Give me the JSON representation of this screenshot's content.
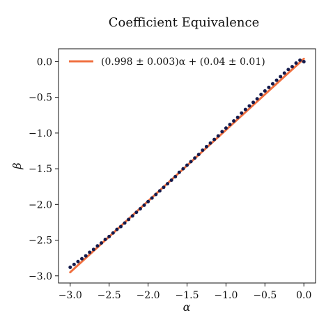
{
  "chart_data": {
    "type": "scatter",
    "title": "Coefficient Equivalence",
    "xlabel": "α",
    "ylabel": "β",
    "xlim": [
      -3.15,
      0.15
    ],
    "ylim": [
      -3.1,
      0.18
    ],
    "x_ticks": [
      -3.0,
      -2.5,
      -2.0,
      -1.5,
      -1.0,
      -0.5,
      0.0
    ],
    "x_tick_labels": [
      "−3.0",
      "−2.5",
      "−2.0",
      "−1.5",
      "−1.0",
      "−0.5",
      "0.0"
    ],
    "y_ticks": [
      0.0,
      -0.5,
      -1.0,
      -1.5,
      -2.0,
      -2.5,
      -3.0
    ],
    "y_tick_labels": [
      "0.0",
      "−0.5",
      "−1.0",
      "−1.5",
      "−2.0",
      "−2.5",
      "−3.0"
    ],
    "grid": false,
    "legend_position": "top-left",
    "legend_label": "(0.998 ± 0.003)α + (0.04 ± 0.01)",
    "points": {
      "x": [
        -3.0,
        -2.95,
        -2.9,
        -2.85,
        -2.8,
        -2.75,
        -2.7,
        -2.65,
        -2.6,
        -2.55,
        -2.5,
        -2.45,
        -2.4,
        -2.35,
        -2.3,
        -2.25,
        -2.2,
        -2.15,
        -2.1,
        -2.05,
        -2.0,
        -1.95,
        -1.9,
        -1.85,
        -1.8,
        -1.75,
        -1.7,
        -1.65,
        -1.6,
        -1.55,
        -1.5,
        -1.45,
        -1.4,
        -1.35,
        -1.3,
        -1.25,
        -1.2,
        -1.15,
        -1.1,
        -1.05,
        -1.0,
        -0.95,
        -0.9,
        -0.85,
        -0.8,
        -0.75,
        -0.7,
        -0.65,
        -0.6,
        -0.55,
        -0.5,
        -0.45,
        -0.4,
        -0.35,
        -0.3,
        -0.25,
        -0.2,
        -0.15,
        -0.1,
        -0.05,
        0.0
      ],
      "y": [
        -2.88,
        -2.84,
        -2.8,
        -2.76,
        -2.72,
        -2.67,
        -2.63,
        -2.58,
        -2.54,
        -2.49,
        -2.45,
        -2.4,
        -2.35,
        -2.31,
        -2.26,
        -2.21,
        -2.16,
        -2.11,
        -2.06,
        -2.01,
        -1.96,
        -1.91,
        -1.86,
        -1.81,
        -1.76,
        -1.71,
        -1.66,
        -1.61,
        -1.55,
        -1.5,
        -1.45,
        -1.4,
        -1.35,
        -1.3,
        -1.24,
        -1.19,
        -1.14,
        -1.09,
        -1.04,
        -0.98,
        -0.93,
        -0.88,
        -0.83,
        -0.78,
        -0.72,
        -0.67,
        -0.62,
        -0.57,
        -0.52,
        -0.46,
        -0.41,
        -0.36,
        -0.31,
        -0.26,
        -0.21,
        -0.16,
        -0.11,
        -0.07,
        -0.02,
        0.02,
        0.0
      ]
    },
    "fit": {
      "x": [
        -3.0,
        0.0
      ],
      "y": [
        -2.95,
        0.04
      ]
    },
    "colors": {
      "points": "#141b4d",
      "fit": "#f07040",
      "axes": "#111111"
    }
  }
}
